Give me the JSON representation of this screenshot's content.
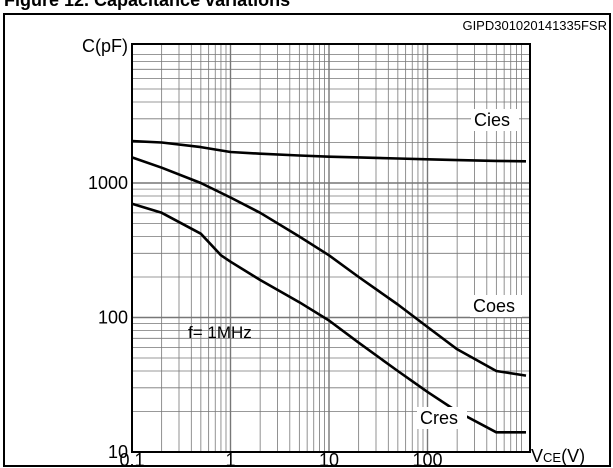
{
  "heading_partial": "Figure 12. Capacitance variations",
  "chart_data": {
    "type": "line",
    "title": "",
    "figure_code": "GIPD301020141335FSR",
    "xlabel_main": "V",
    "xlabel_sub": "CE",
    "xlabel_unit": "(V)",
    "ylabel": "C(pF)",
    "x_scale": "log",
    "y_scale": "log",
    "xlim": [
      0.1,
      1000
    ],
    "ylim": [
      10,
      4000
    ],
    "x_ticks": [
      0.1,
      1,
      10,
      100
    ],
    "x_tick_labels": [
      "0.1",
      "1",
      "10",
      "100"
    ],
    "y_ticks": [
      10,
      100,
      1000
    ],
    "y_tick_labels": [
      "10",
      "100",
      "1000"
    ],
    "grid": true,
    "annotation": "f= 1MHz",
    "series": [
      {
        "name": "Cies",
        "points": [
          [
            0.1,
            2050
          ],
          [
            0.2,
            2000
          ],
          [
            0.5,
            1850
          ],
          [
            1,
            1700
          ],
          [
            2,
            1650
          ],
          [
            5,
            1600
          ],
          [
            10,
            1570
          ],
          [
            20,
            1550
          ],
          [
            50,
            1520
          ],
          [
            100,
            1500
          ],
          [
            200,
            1480
          ],
          [
            500,
            1460
          ],
          [
            1000,
            1450
          ]
        ]
      },
      {
        "name": "Coes",
        "points": [
          [
            0.1,
            1550
          ],
          [
            0.2,
            1300
          ],
          [
            0.5,
            1000
          ],
          [
            1,
            780
          ],
          [
            2,
            600
          ],
          [
            5,
            400
          ],
          [
            10,
            290
          ],
          [
            20,
            200
          ],
          [
            50,
            125
          ],
          [
            100,
            85
          ],
          [
            200,
            58
          ],
          [
            500,
            40
          ],
          [
            1000,
            37
          ]
        ]
      },
      {
        "name": "Cres",
        "points": [
          [
            0.1,
            700
          ],
          [
            0.2,
            600
          ],
          [
            0.5,
            420
          ],
          [
            0.8,
            290
          ],
          [
            1,
            260
          ],
          [
            2,
            190
          ],
          [
            5,
            130
          ],
          [
            10,
            95
          ],
          [
            20,
            65
          ],
          [
            50,
            40
          ],
          [
            100,
            28
          ],
          [
            200,
            20
          ],
          [
            500,
            14
          ],
          [
            1000,
            14
          ]
        ]
      }
    ]
  }
}
